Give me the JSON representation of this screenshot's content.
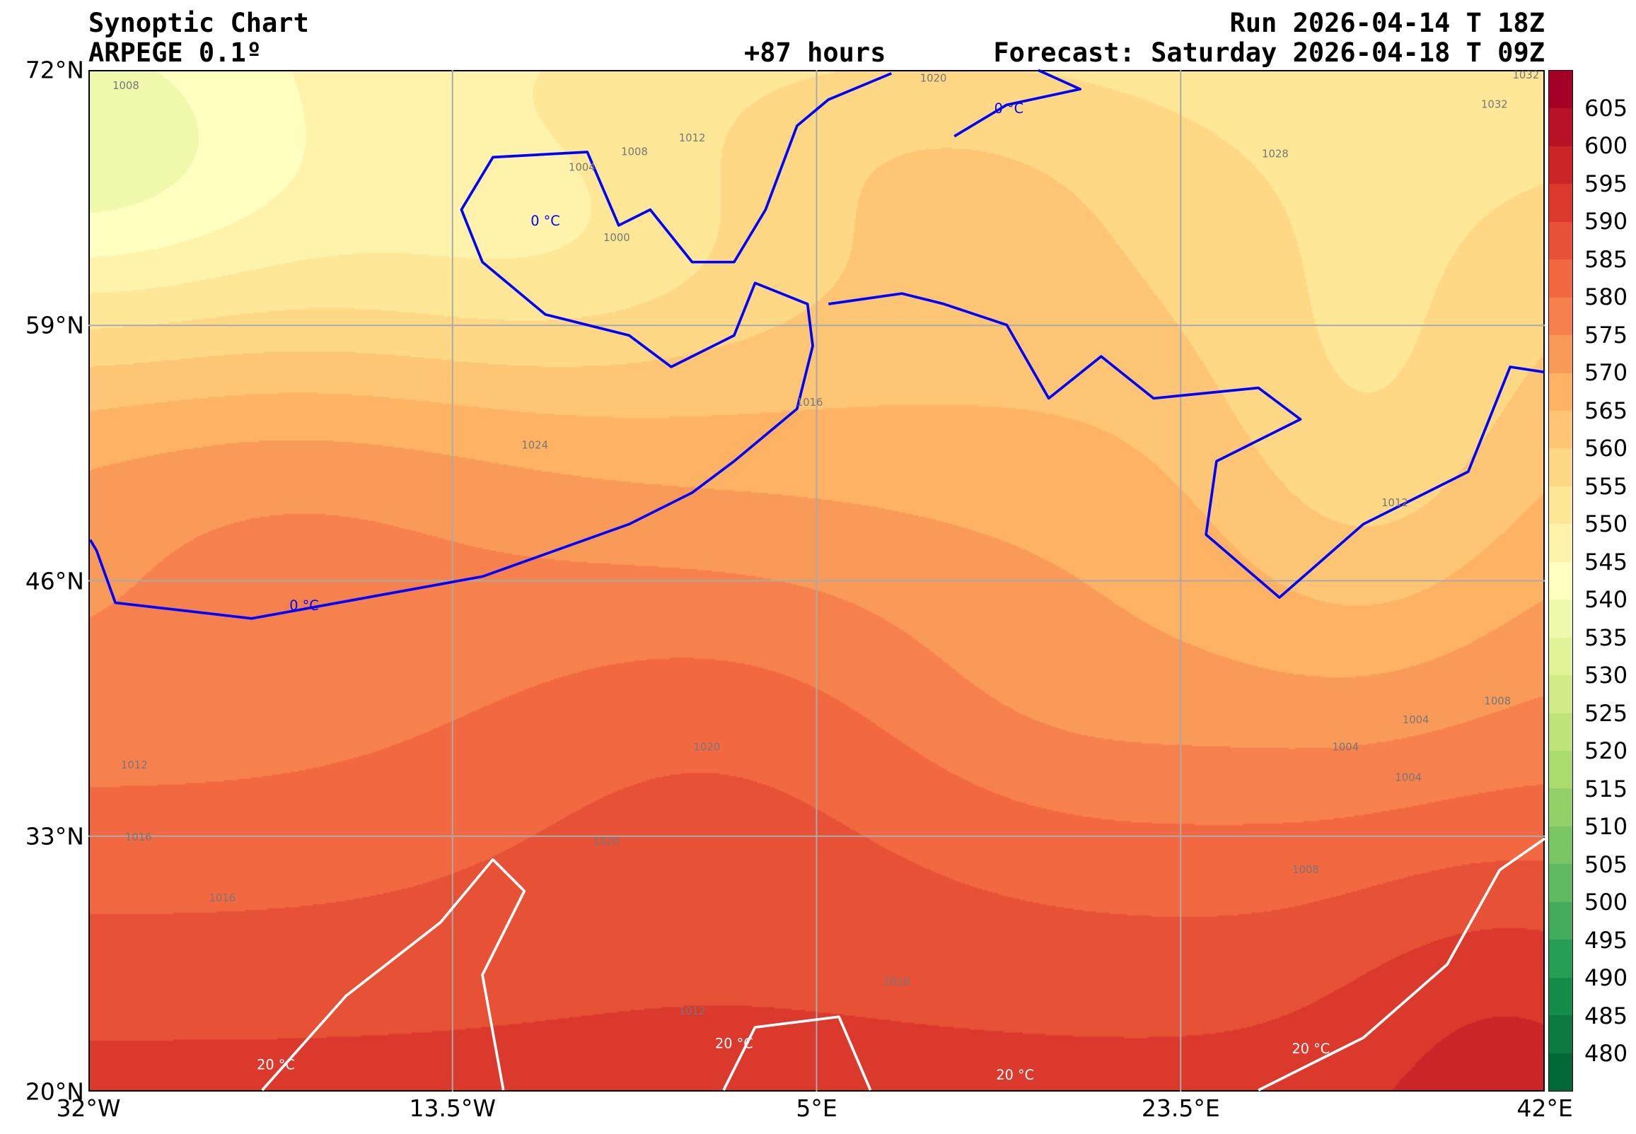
{
  "header": {
    "title": "Synoptic Chart",
    "model": "ARPEGE 0.1º",
    "lead": "+87 hours",
    "run": "Run 2026-04-14 T 18Z",
    "forecast": "Forecast: Saturday 2026-04-18 T 09Z"
  },
  "chart_data": {
    "type": "heatmap",
    "title": "Synoptic Chart",
    "subtitle": "ARPEGE 0.1º",
    "xlabel": "",
    "ylabel": "",
    "x_ticks": [
      "32°W",
      "13.5°W",
      "5°E",
      "23.5°E",
      "42°E"
    ],
    "y_ticks": [
      "20°N",
      "33°N",
      "46°N",
      "59°N",
      "72°N"
    ],
    "xlim": [
      -32,
      42
    ],
    "ylim": [
      20,
      72
    ],
    "grid": true,
    "colorbar": {
      "levels": [
        475,
        480,
        485,
        490,
        495,
        500,
        505,
        510,
        515,
        520,
        525,
        530,
        535,
        540,
        545,
        550,
        555,
        560,
        565,
        570,
        575,
        580,
        585,
        590,
        595,
        600,
        605,
        610
      ],
      "tick_labels": [
        "480",
        "485",
        "490",
        "495",
        "500",
        "505",
        "510",
        "515",
        "520",
        "525",
        "530",
        "535",
        "540",
        "545",
        "550",
        "555",
        "560",
        "565",
        "570",
        "575",
        "580",
        "585",
        "590",
        "595",
        "600",
        "605"
      ],
      "colormap": [
        "#006837",
        "#1a9850",
        "#66bd63",
        "#a6d96a",
        "#d9ef8b",
        "#ffffbf",
        "#fee08b",
        "#fdae61",
        "#f46d43",
        "#d73027",
        "#a50026"
      ],
      "placement": "right"
    },
    "isotherm_labels": [
      "0 °C",
      "0 °C",
      "0 °C",
      "20 °C",
      "20 °C",
      "20 °C",
      "20 °C"
    ],
    "isobar_labels": [
      "1008",
      "1020",
      "1032",
      "1032",
      "1012",
      "1008",
      "1004",
      "1000",
      "1028",
      "1016",
      "1024",
      "1012",
      "1008",
      "1004",
      "1004",
      "1004",
      "1020",
      "1012",
      "1016",
      "1016",
      "1020",
      "1008",
      "1016",
      "1012"
    ],
    "colors": {
      "isotherm_0": "#0000ff",
      "isotherm_20": "#ffffff",
      "isobar": "#808080",
      "coast": "#000000"
    }
  }
}
